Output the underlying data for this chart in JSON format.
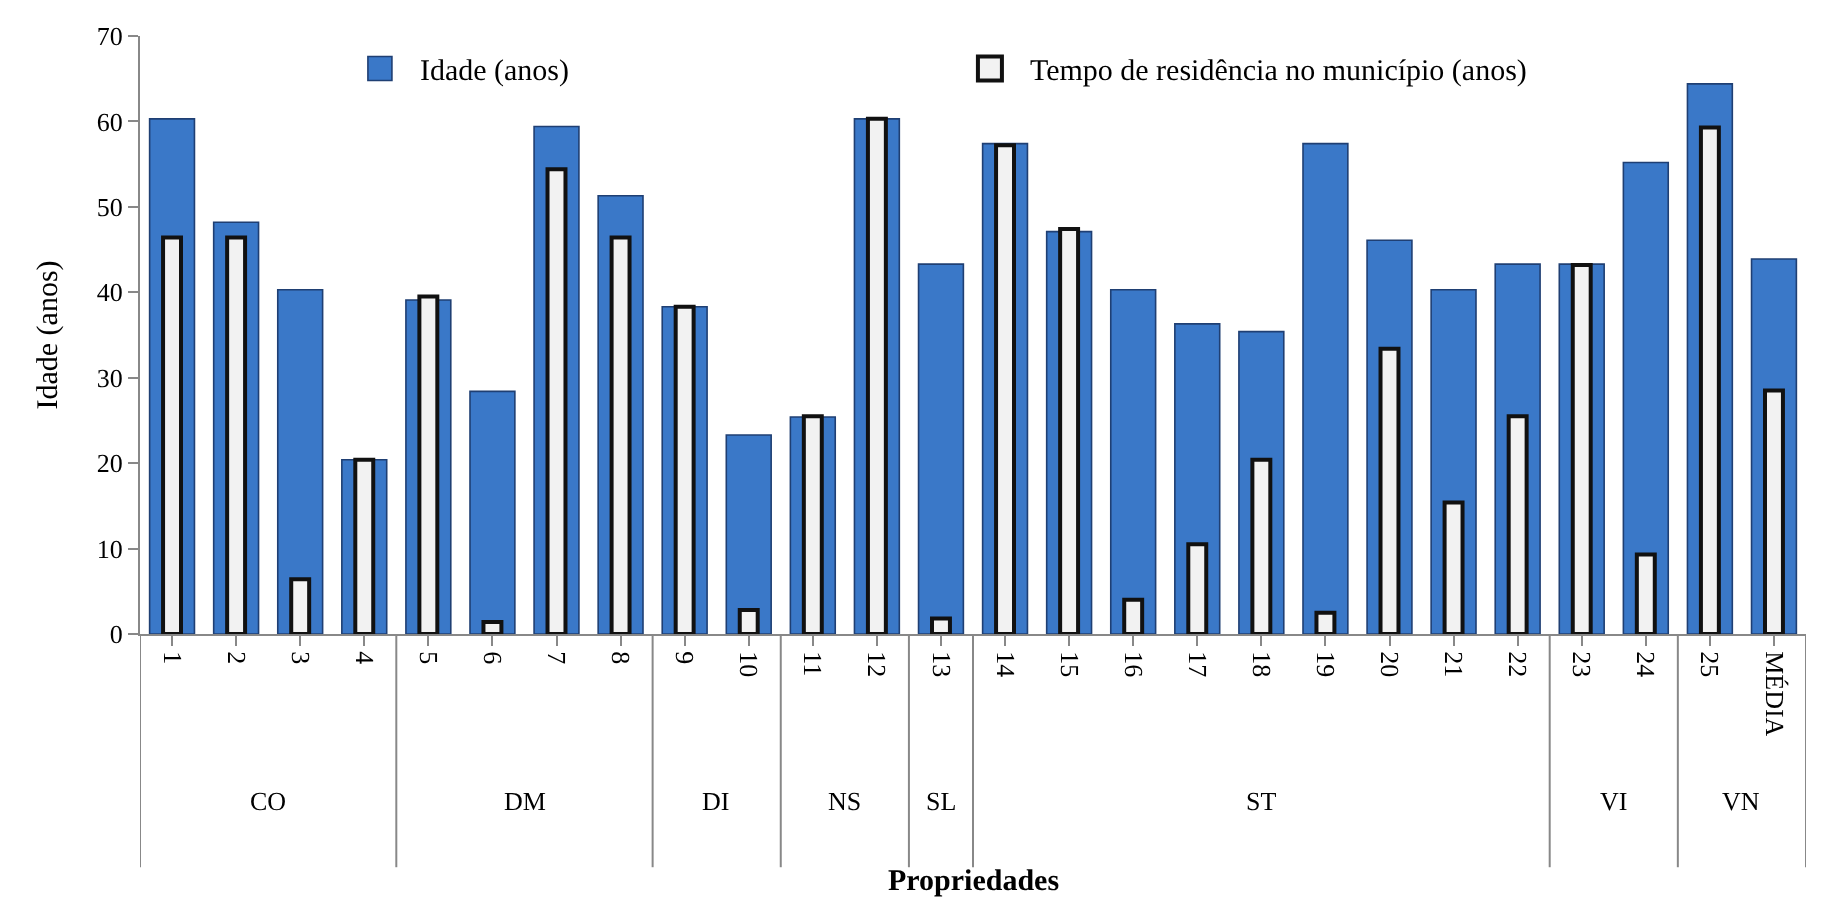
{
  "chart_data": {
    "type": "bar",
    "xlabel": "Propriedades",
    "ylabel": "Idade (anos)",
    "categories": [
      "1",
      "2",
      "3",
      "4",
      "5",
      "6",
      "7",
      "8",
      "9",
      "10",
      "11",
      "12",
      "13",
      "14",
      "15",
      "16",
      "17",
      "18",
      "19",
      "20",
      "21",
      "22",
      "23",
      "24",
      "25",
      "MÉDIA"
    ],
    "series": [
      {
        "name": "Idade (anos)",
        "color": "#3a78c8",
        "values": [
          60.3,
          48.2,
          40.3,
          20.4,
          39.1,
          28.4,
          59.4,
          51.3,
          38.3,
          23.3,
          25.4,
          60.3,
          43.3,
          57.4,
          47.1,
          40.3,
          36.3,
          35.4,
          57.4,
          46.1,
          40.3,
          43.3,
          43.3,
          55.2,
          64.4,
          43.9
        ]
      },
      {
        "name": "Tempo de residência no município (anos)",
        "color": "#f2f2f2",
        "values": [
          46.4,
          46.4,
          6.4,
          20.4,
          39.5,
          1.4,
          54.4,
          46.4,
          38.3,
          2.8,
          25.5,
          60.3,
          1.8,
          57.2,
          47.4,
          4.0,
          10.5,
          20.4,
          2.5,
          33.4,
          15.4,
          25.5,
          43.2,
          9.3,
          59.3,
          28.5
        ]
      }
    ],
    "ylim": [
      0,
      70
    ],
    "yticks": [
      0,
      10,
      20,
      30,
      40,
      50,
      60,
      70
    ],
    "legend": "top",
    "annotations": [
      "CO",
      "DM",
      "DI",
      "NS",
      "SL",
      "ST",
      "VI",
      "VN"
    ]
  }
}
